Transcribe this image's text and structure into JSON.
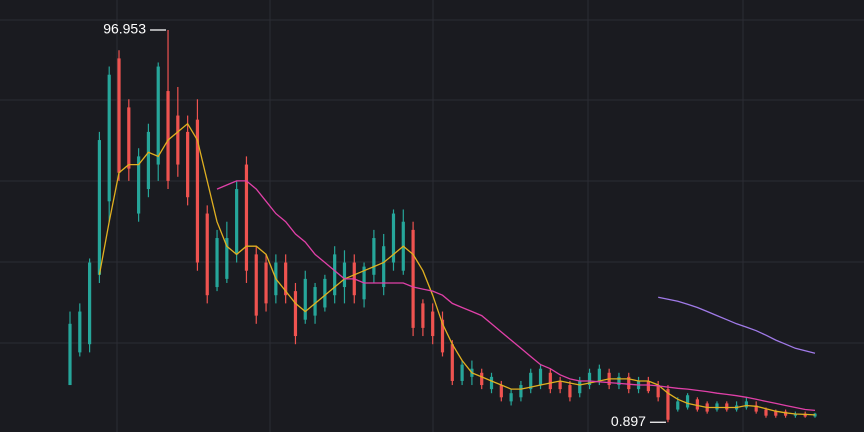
{
  "chart_data": {
    "type": "candlestick",
    "ylim": [
      -1.5,
      104.3
    ],
    "up_color": "#26a69a",
    "down_color": "#ef5350",
    "open": [
      10,
      18,
      20,
      37,
      55,
      90,
      78,
      52,
      58,
      64,
      82,
      76,
      72,
      75,
      52,
      34,
      36,
      42,
      64,
      42,
      40,
      32,
      40,
      33,
      26,
      27,
      29,
      32,
      34,
      40,
      31,
      37,
      34,
      40,
      38,
      48,
      30,
      28,
      26,
      20,
      11,
      12,
      13,
      9,
      10,
      6,
      7,
      9,
      10,
      13,
      11,
      10,
      8,
      10,
      11,
      13,
      10,
      12,
      9,
      11,
      10,
      9,
      4,
      4.5,
      6.5,
      5.5,
      4,
      5.5,
      4,
      4.5,
      5,
      4,
      3.5,
      3.5,
      2.5,
      3,
      2.3
    ],
    "high": [
      28,
      30,
      41,
      72,
      88,
      92,
      80,
      68,
      74,
      89,
      96.953,
      83,
      76,
      80,
      54,
      48,
      50,
      60,
      66,
      44,
      42,
      42,
      42,
      35,
      38,
      35,
      37,
      44,
      43,
      42,
      40,
      48,
      47,
      53,
      53,
      50,
      31,
      30,
      28,
      21,
      16,
      16,
      14,
      13,
      11,
      9,
      11,
      14,
      15,
      14,
      12,
      11,
      12,
      14,
      15,
      14,
      13,
      13,
      12,
      12,
      11,
      10,
      7,
      8,
      7,
      6,
      6,
      6,
      6,
      7,
      6,
      4.5,
      4,
      4,
      3.5,
      3.5,
      3.2
    ],
    "low": [
      10,
      17,
      18,
      35,
      50,
      60,
      60,
      50,
      56,
      60,
      58,
      61,
      54,
      38,
      30,
      33,
      35,
      40,
      35,
      25,
      28,
      30,
      30,
      20,
      25,
      25,
      28,
      30,
      30,
      30,
      29,
      35,
      32,
      38,
      37,
      22,
      22,
      20,
      17,
      10,
      10,
      10,
      9,
      8,
      6,
      5,
      6,
      8,
      9,
      8,
      8,
      6,
      7,
      9,
      10,
      9,
      9,
      8,
      8,
      8,
      6,
      0.897,
      3.5,
      4,
      3.5,
      3,
      3.5,
      3.5,
      3.5,
      4,
      3,
      2,
      2,
      2,
      2,
      2,
      2
    ],
    "close": [
      25,
      28,
      40,
      70,
      86,
      62,
      63,
      66,
      72,
      88,
      60,
      64,
      56,
      40,
      32,
      46,
      46,
      58,
      38,
      27,
      30,
      40,
      32,
      22,
      36,
      34,
      36,
      42,
      40,
      32,
      39,
      46,
      44,
      52,
      50,
      24,
      24,
      22,
      18,
      11,
      15,
      14,
      10,
      12,
      7,
      8,
      10,
      13,
      14,
      9,
      9,
      7,
      11,
      13,
      14,
      10,
      12,
      9,
      11,
      8.5,
      7,
      1.5,
      6,
      7.5,
      4,
      3.5,
      5.5,
      4,
      5,
      6,
      3.5,
      2.5,
      2.5,
      2.5,
      3,
      2.3,
      3
    ],
    "series": [
      {
        "color": "#e0b020",
        "values": [
          null,
          null,
          null,
          37,
          50,
          62,
          64,
          64,
          67,
          66,
          70,
          72,
          74,
          70,
          60,
          50,
          44,
          42,
          44,
          44,
          42,
          36,
          33,
          30,
          28,
          30,
          32,
          34,
          36,
          37,
          38,
          39,
          40,
          42,
          44,
          42,
          38,
          32,
          25,
          20,
          16,
          13,
          12,
          11,
          10,
          9,
          9,
          9.5,
          10,
          10.5,
          11,
          10.5,
          10,
          10.5,
          11,
          11.5,
          11.5,
          11.5,
          11,
          11,
          10,
          8,
          6.5,
          5.5,
          5,
          4.5,
          4.5,
          4.5,
          4.5,
          5,
          4.8,
          4.2,
          3.6,
          3.2,
          2.9,
          2.8,
          2.7
        ]
      },
      {
        "color": "#e040a8",
        "values": [
          null,
          null,
          null,
          null,
          null,
          null,
          null,
          null,
          null,
          null,
          null,
          null,
          null,
          null,
          null,
          58,
          59,
          60,
          60,
          58,
          55,
          52,
          50,
          47,
          45,
          42,
          40,
          38,
          36,
          36,
          35,
          35,
          35,
          35,
          35,
          34,
          33.5,
          33,
          32,
          30,
          29,
          28,
          27,
          25,
          23,
          21,
          19,
          17,
          15,
          14,
          12.5,
          11.5,
          11,
          11,
          10.8,
          10.6,
          10.4,
          10.2,
          10,
          10,
          9.8,
          9.5,
          9.2,
          9,
          8.7,
          8.4,
          8,
          7.7,
          7.4,
          7,
          6.5,
          6,
          5.5,
          5,
          4.5,
          4,
          3.8
        ]
      },
      {
        "color": "#a07ae8",
        "values": [
          null,
          null,
          null,
          null,
          null,
          null,
          null,
          null,
          null,
          null,
          null,
          null,
          null,
          null,
          null,
          null,
          null,
          null,
          null,
          null,
          null,
          null,
          null,
          null,
          null,
          null,
          null,
          null,
          null,
          null,
          null,
          null,
          null,
          null,
          null,
          null,
          null,
          null,
          null,
          null,
          null,
          null,
          null,
          null,
          null,
          null,
          null,
          null,
          null,
          null,
          null,
          null,
          null,
          null,
          null,
          null,
          null,
          null,
          null,
          null,
          31.5,
          31,
          30.5,
          29.8,
          29,
          28,
          27,
          26,
          25,
          24.2,
          23.3,
          22.2,
          21,
          20,
          19,
          18.4,
          17.8
        ]
      }
    ],
    "annotations": [
      {
        "label": "96.953",
        "value": 96.953,
        "field": "high"
      },
      {
        "label": "0.897",
        "value": 0.897,
        "field": "low"
      }
    ]
  }
}
